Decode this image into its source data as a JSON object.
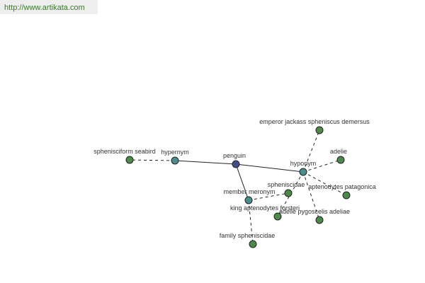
{
  "header": {
    "url": "http://www.artikata.com"
  },
  "nodes": [
    {
      "label": "penguin"
    },
    {
      "label": "hypernym"
    },
    {
      "label": "sphenisciform seabird"
    },
    {
      "label": "hyponym"
    },
    {
      "label": "member meronym"
    },
    {
      "label": "emperor jackass spheniscus demersus"
    },
    {
      "label": "adelie"
    },
    {
      "label": "aptenodytes patagonica"
    },
    {
      "label": "spheniscidae"
    },
    {
      "label": "king aptenodytes forsteri"
    },
    {
      "label": "adelie pygoscelis adeliae"
    },
    {
      "label": "family spheniscidae"
    }
  ]
}
